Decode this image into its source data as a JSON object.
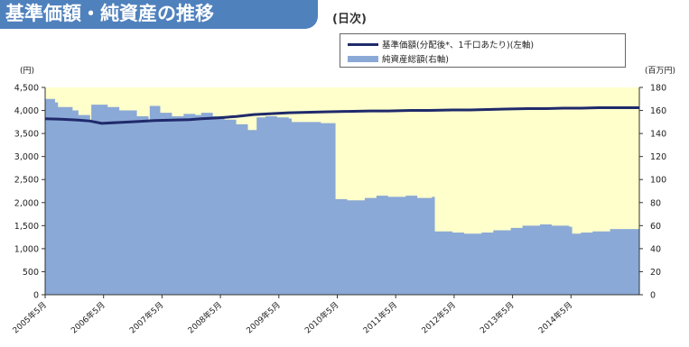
{
  "header": {
    "title": "基準価額・純資産の推移",
    "subtitle": "(日次)"
  },
  "legend": {
    "line_label": "基準価額(分配後*、1千口あたり)(左軸)",
    "area_label": "純資産総額(右軸)"
  },
  "axes": {
    "left_unit": "(円)",
    "right_unit": "(百万円)"
  },
  "chart_data": {
    "type": "line",
    "title": "基準価額・純資産の推移",
    "subtitle": "(日次)",
    "x_labels": [
      "2005年5月",
      "2006年5月",
      "2007年5月",
      "2008年5月",
      "2009年5月",
      "2010年5月",
      "2011年5月",
      "2012年5月",
      "2013年5月",
      "2014年5月"
    ],
    "x_range": [
      2005.33,
      2015.5
    ],
    "y_left": {
      "unit": "(円)",
      "ylim": [
        0,
        4500
      ],
      "ticks": [
        "0",
        "500",
        "1,000",
        "1,500",
        "2,000",
        "2,500",
        "3,000",
        "3,500",
        "4,000",
        "4,500"
      ]
    },
    "y_right": {
      "unit": "(百万円)",
      "ylim": [
        0,
        180
      ],
      "ticks": [
        "0",
        "20",
        "40",
        "60",
        "80",
        "100",
        "120",
        "140",
        "160",
        "180"
      ]
    },
    "plot_background": "#ffffcc",
    "series": [
      {
        "name": "基準価額(分配後*、1千口あたり)(左軸)",
        "axis": "left",
        "style": "line",
        "color": "#1f2a6b",
        "x": [
          2005.33,
          2005.6,
          2005.9,
          2006.1,
          2006.3,
          2006.6,
          2006.9,
          2007.2,
          2007.5,
          2007.8,
          2008.0,
          2008.3,
          2008.6,
          2008.9,
          2009.2,
          2009.5,
          2009.8,
          2010.1,
          2010.5,
          2010.9,
          2011.2,
          2011.6,
          2011.9,
          2012.3,
          2012.6,
          2012.9,
          2013.2,
          2013.6,
          2013.9,
          2014.2,
          2014.5,
          2014.8,
          2015.2,
          2015.5
        ],
        "y": [
          3820,
          3810,
          3790,
          3770,
          3720,
          3740,
          3760,
          3780,
          3790,
          3800,
          3820,
          3840,
          3870,
          3910,
          3930,
          3950,
          3960,
          3970,
          3980,
          3990,
          3990,
          4000,
          4000,
          4010,
          4010,
          4020,
          4030,
          4040,
          4040,
          4050,
          4050,
          4060,
          4060,
          4060
        ]
      },
      {
        "name": "純資産総額(右軸)",
        "axis": "right",
        "style": "area",
        "color": "#8ba9d6",
        "x": [
          2005.33,
          2005.5,
          2005.55,
          2005.8,
          2005.9,
          2006.1,
          2006.12,
          2006.4,
          2006.6,
          2006.9,
          2007.1,
          2007.12,
          2007.3,
          2007.5,
          2007.7,
          2007.9,
          2008.0,
          2008.2,
          2008.4,
          2008.6,
          2008.8,
          2008.95,
          2009.1,
          2009.3,
          2009.5,
          2009.55,
          2010.0,
          2010.05,
          2010.3,
          2010.5,
          2010.8,
          2011.0,
          2011.2,
          2011.5,
          2011.7,
          2011.95,
          2012.0,
          2012.3,
          2012.5,
          2012.8,
          2013.0,
          2013.3,
          2013.5,
          2013.8,
          2014.0,
          2014.3,
          2014.35,
          2014.5,
          2014.7,
          2015.0,
          2015.5
        ],
        "y": [
          170,
          167,
          163,
          160,
          156,
          152,
          165,
          163,
          160,
          155,
          150,
          164,
          158,
          155,
          157,
          156,
          158,
          155,
          152,
          148,
          143,
          154,
          155,
          154,
          153,
          150,
          150,
          149,
          83,
          82,
          84,
          86,
          85,
          86,
          84,
          85,
          55,
          54,
          53,
          54,
          56,
          58,
          60,
          61,
          60,
          59,
          53,
          54,
          55,
          57,
          60
        ]
      }
    ]
  }
}
